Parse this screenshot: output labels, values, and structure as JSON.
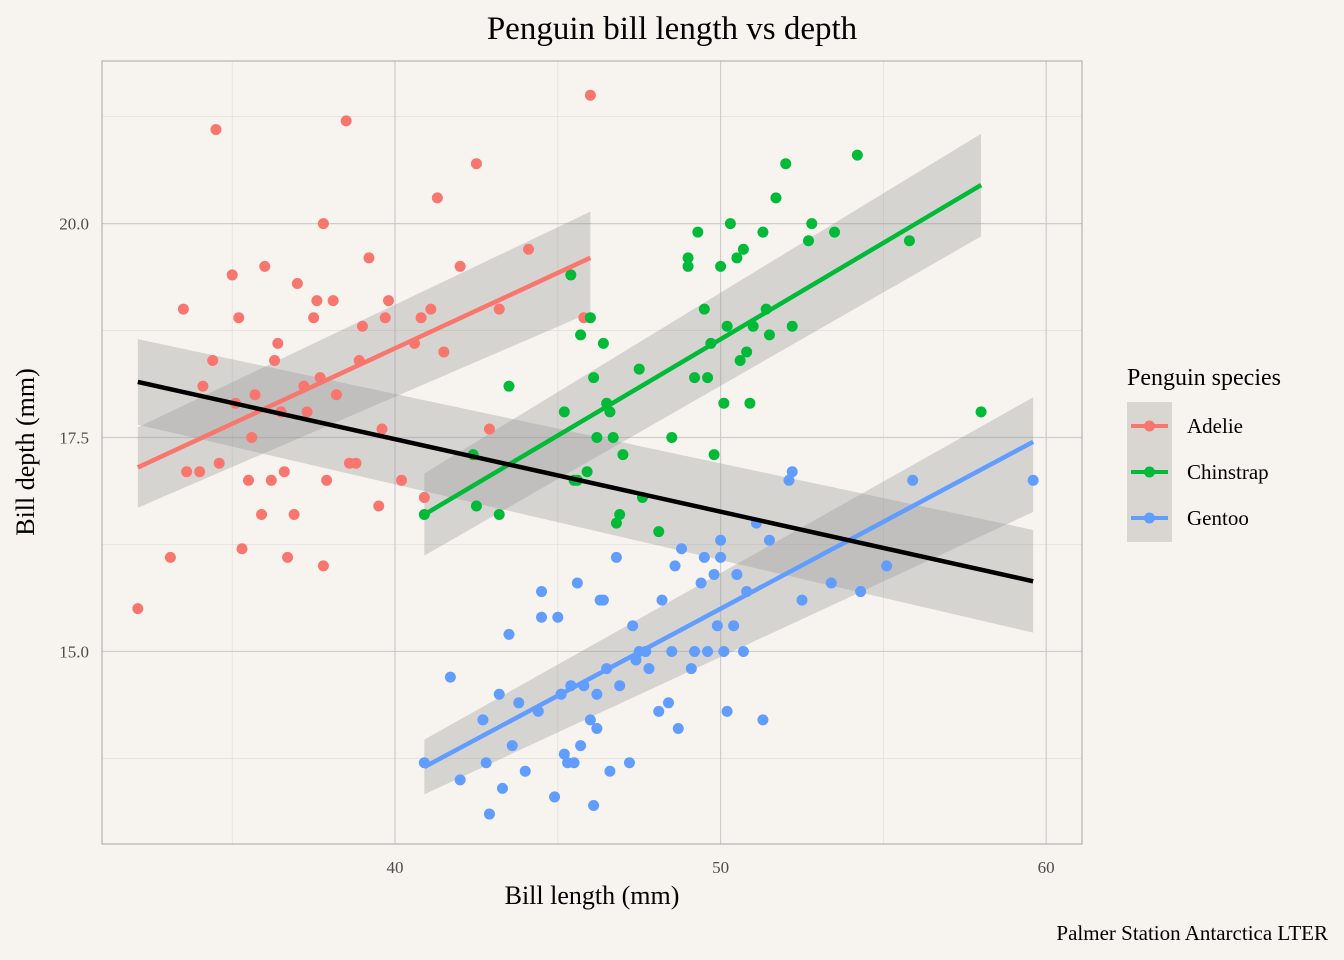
{
  "chart_data": {
    "type": "scatter",
    "title": "Penguin bill length vs depth",
    "xlabel": "Bill length  (mm)",
    "ylabel": "Bill depth (mm)",
    "caption": "Palmer Station Antarctica LTER",
    "legend_title": "Penguin species",
    "legend_position": "right",
    "xlim": [
      31,
      61.1
    ],
    "ylim": [
      12.75,
      21.9
    ],
    "xticks": [
      40,
      50,
      60
    ],
    "xtick_labels": [
      "40",
      "50",
      "60"
    ],
    "yticks": [
      15.0,
      17.5,
      20.0
    ],
    "ytick_labels": [
      "15.0",
      "17.5",
      "20.0"
    ],
    "grid": true,
    "colors": {
      "Adelie": "#f8766d",
      "Chinstrap": "#00ba38",
      "Gentoo": "#619cff",
      "overall": "#000000",
      "ribbon": "#999999",
      "panel_bg": "#f7f4f0",
      "grid": "#cccccc"
    },
    "series": [
      {
        "name": "Adelie",
        "x": [
          32.1,
          33.1,
          33.5,
          34.0,
          34.4,
          34.5,
          34.6,
          35.0,
          35.1,
          35.2,
          35.3,
          35.5,
          35.7,
          35.9,
          36.0,
          36.2,
          36.4,
          36.5,
          36.6,
          36.7,
          36.9,
          37.0,
          37.2,
          37.3,
          37.5,
          37.6,
          37.7,
          37.8,
          37.9,
          38.1,
          38.2,
          38.5,
          38.6,
          38.8,
          39.0,
          39.2,
          39.5,
          39.6,
          39.7,
          40.2,
          40.6,
          40.8,
          41.1,
          41.5,
          42.0,
          42.5,
          42.9,
          43.2,
          44.1,
          45.8,
          46.0,
          37.8,
          38.9,
          40.9,
          41.3,
          33.6,
          34.1,
          35.6,
          36.3,
          39.8
        ],
        "y": [
          15.5,
          16.1,
          19.0,
          17.1,
          18.4,
          21.1,
          17.2,
          19.4,
          17.9,
          18.9,
          16.2,
          17.0,
          18.0,
          16.6,
          19.5,
          17.0,
          18.6,
          17.8,
          17.1,
          16.1,
          16.6,
          19.3,
          18.1,
          17.8,
          18.9,
          19.1,
          18.2,
          20.0,
          17.0,
          19.1,
          18.0,
          21.2,
          17.2,
          17.2,
          18.8,
          19.6,
          16.7,
          17.6,
          18.9,
          17.0,
          18.6,
          18.9,
          19.0,
          18.5,
          19.5,
          20.7,
          17.6,
          19.0,
          19.7,
          18.9,
          21.5,
          16.0,
          18.4,
          16.8,
          20.3,
          17.1,
          18.1,
          17.5,
          18.4,
          19.1
        ]
      },
      {
        "name": "Chinstrap",
        "x": [
          40.9,
          42.4,
          42.5,
          43.2,
          43.5,
          45.2,
          45.4,
          45.5,
          45.7,
          45.9,
          46.0,
          46.1,
          46.4,
          46.5,
          46.6,
          46.7,
          46.8,
          46.9,
          47.0,
          47.5,
          48.1,
          48.5,
          49.0,
          49.2,
          49.3,
          49.5,
          49.6,
          49.7,
          49.8,
          50.0,
          50.1,
          50.2,
          50.3,
          50.5,
          50.6,
          50.7,
          50.8,
          50.9,
          51.0,
          51.3,
          51.4,
          51.5,
          51.7,
          52.0,
          52.2,
          52.7,
          52.8,
          53.5,
          54.2,
          55.8,
          58.0,
          49.0,
          45.6,
          46.2,
          47.6
        ],
        "y": [
          16.6,
          17.3,
          16.7,
          16.6,
          18.1,
          17.8,
          19.4,
          17.0,
          18.7,
          17.1,
          18.9,
          18.2,
          18.6,
          17.9,
          17.8,
          17.5,
          16.5,
          16.6,
          17.3,
          18.3,
          16.4,
          17.5,
          19.5,
          18.2,
          19.9,
          19.0,
          18.2,
          18.6,
          17.3,
          19.5,
          17.9,
          18.8,
          20.0,
          19.6,
          18.4,
          19.7,
          18.5,
          17.9,
          18.8,
          19.9,
          19.0,
          18.7,
          20.3,
          20.7,
          18.8,
          19.8,
          20.0,
          19.9,
          20.8,
          19.8,
          17.8,
          19.6,
          17.0,
          17.5,
          16.8
        ]
      },
      {
        "name": "Gentoo",
        "x": [
          40.9,
          41.7,
          42.0,
          42.7,
          42.8,
          42.9,
          43.2,
          43.3,
          43.5,
          43.6,
          44.0,
          44.4,
          44.5,
          44.9,
          45.0,
          45.1,
          45.2,
          45.3,
          45.4,
          45.5,
          45.7,
          45.8,
          46.1,
          46.2,
          46.3,
          46.4,
          46.5,
          46.6,
          46.8,
          46.9,
          47.2,
          47.3,
          47.5,
          47.7,
          48.2,
          48.4,
          48.5,
          48.7,
          48.8,
          49.1,
          49.2,
          49.4,
          49.5,
          49.6,
          49.8,
          50.0,
          50.1,
          50.2,
          50.4,
          50.5,
          50.7,
          50.8,
          51.1,
          51.3,
          51.5,
          52.1,
          52.2,
          52.5,
          53.4,
          54.3,
          55.1,
          55.9,
          59.6,
          44.5,
          45.1,
          46.2,
          47.4,
          48.6,
          49.9,
          50.0,
          46.0,
          43.8,
          45.6,
          47.8,
          48.1
        ],
        "y": [
          13.7,
          14.7,
          13.5,
          14.2,
          13.7,
          13.1,
          14.5,
          13.4,
          15.2,
          13.9,
          13.6,
          14.3,
          15.7,
          13.3,
          15.4,
          14.5,
          13.8,
          13.7,
          14.6,
          13.7,
          13.9,
          14.6,
          13.2,
          14.5,
          15.6,
          15.6,
          14.8,
          13.6,
          16.1,
          14.6,
          13.7,
          15.3,
          15.0,
          15.0,
          15.6,
          14.4,
          15.0,
          14.1,
          16.2,
          14.8,
          15.0,
          15.8,
          16.1,
          15.0,
          15.9,
          16.3,
          15.0,
          14.3,
          15.3,
          15.9,
          15.0,
          15.7,
          16.5,
          14.2,
          16.3,
          17.0,
          17.1,
          15.6,
          15.8,
          15.7,
          16.0,
          17.0,
          17.0,
          15.4,
          14.5,
          14.1,
          14.9,
          16.0,
          15.3,
          16.1,
          14.2,
          14.4,
          15.8,
          14.8,
          14.3
        ]
      }
    ],
    "trend_lines": [
      {
        "name": "Adelie",
        "x": [
          32.1,
          46.0
        ],
        "y": [
          17.15,
          19.6
        ],
        "ribbon_low": [
          16.68,
          18.96
        ],
        "ribbon_high": [
          17.62,
          20.14
        ]
      },
      {
        "name": "Chinstrap",
        "x": [
          40.9,
          58.0
        ],
        "y": [
          16.6,
          20.45
        ],
        "ribbon_low": [
          16.12,
          19.85
        ],
        "ribbon_high": [
          17.08,
          21.05
        ]
      },
      {
        "name": "Gentoo",
        "x": [
          40.9,
          59.6
        ],
        "y": [
          13.65,
          17.45
        ],
        "ribbon_low": [
          13.33,
          16.63
        ],
        "ribbon_high": [
          13.97,
          17.97
        ]
      },
      {
        "name": "overall",
        "x": [
          32.1,
          59.6
        ],
        "y": [
          18.15,
          15.82
        ],
        "ribbon_low": [
          17.65,
          15.22
        ],
        "ribbon_high": [
          18.65,
          16.42
        ]
      }
    ]
  }
}
